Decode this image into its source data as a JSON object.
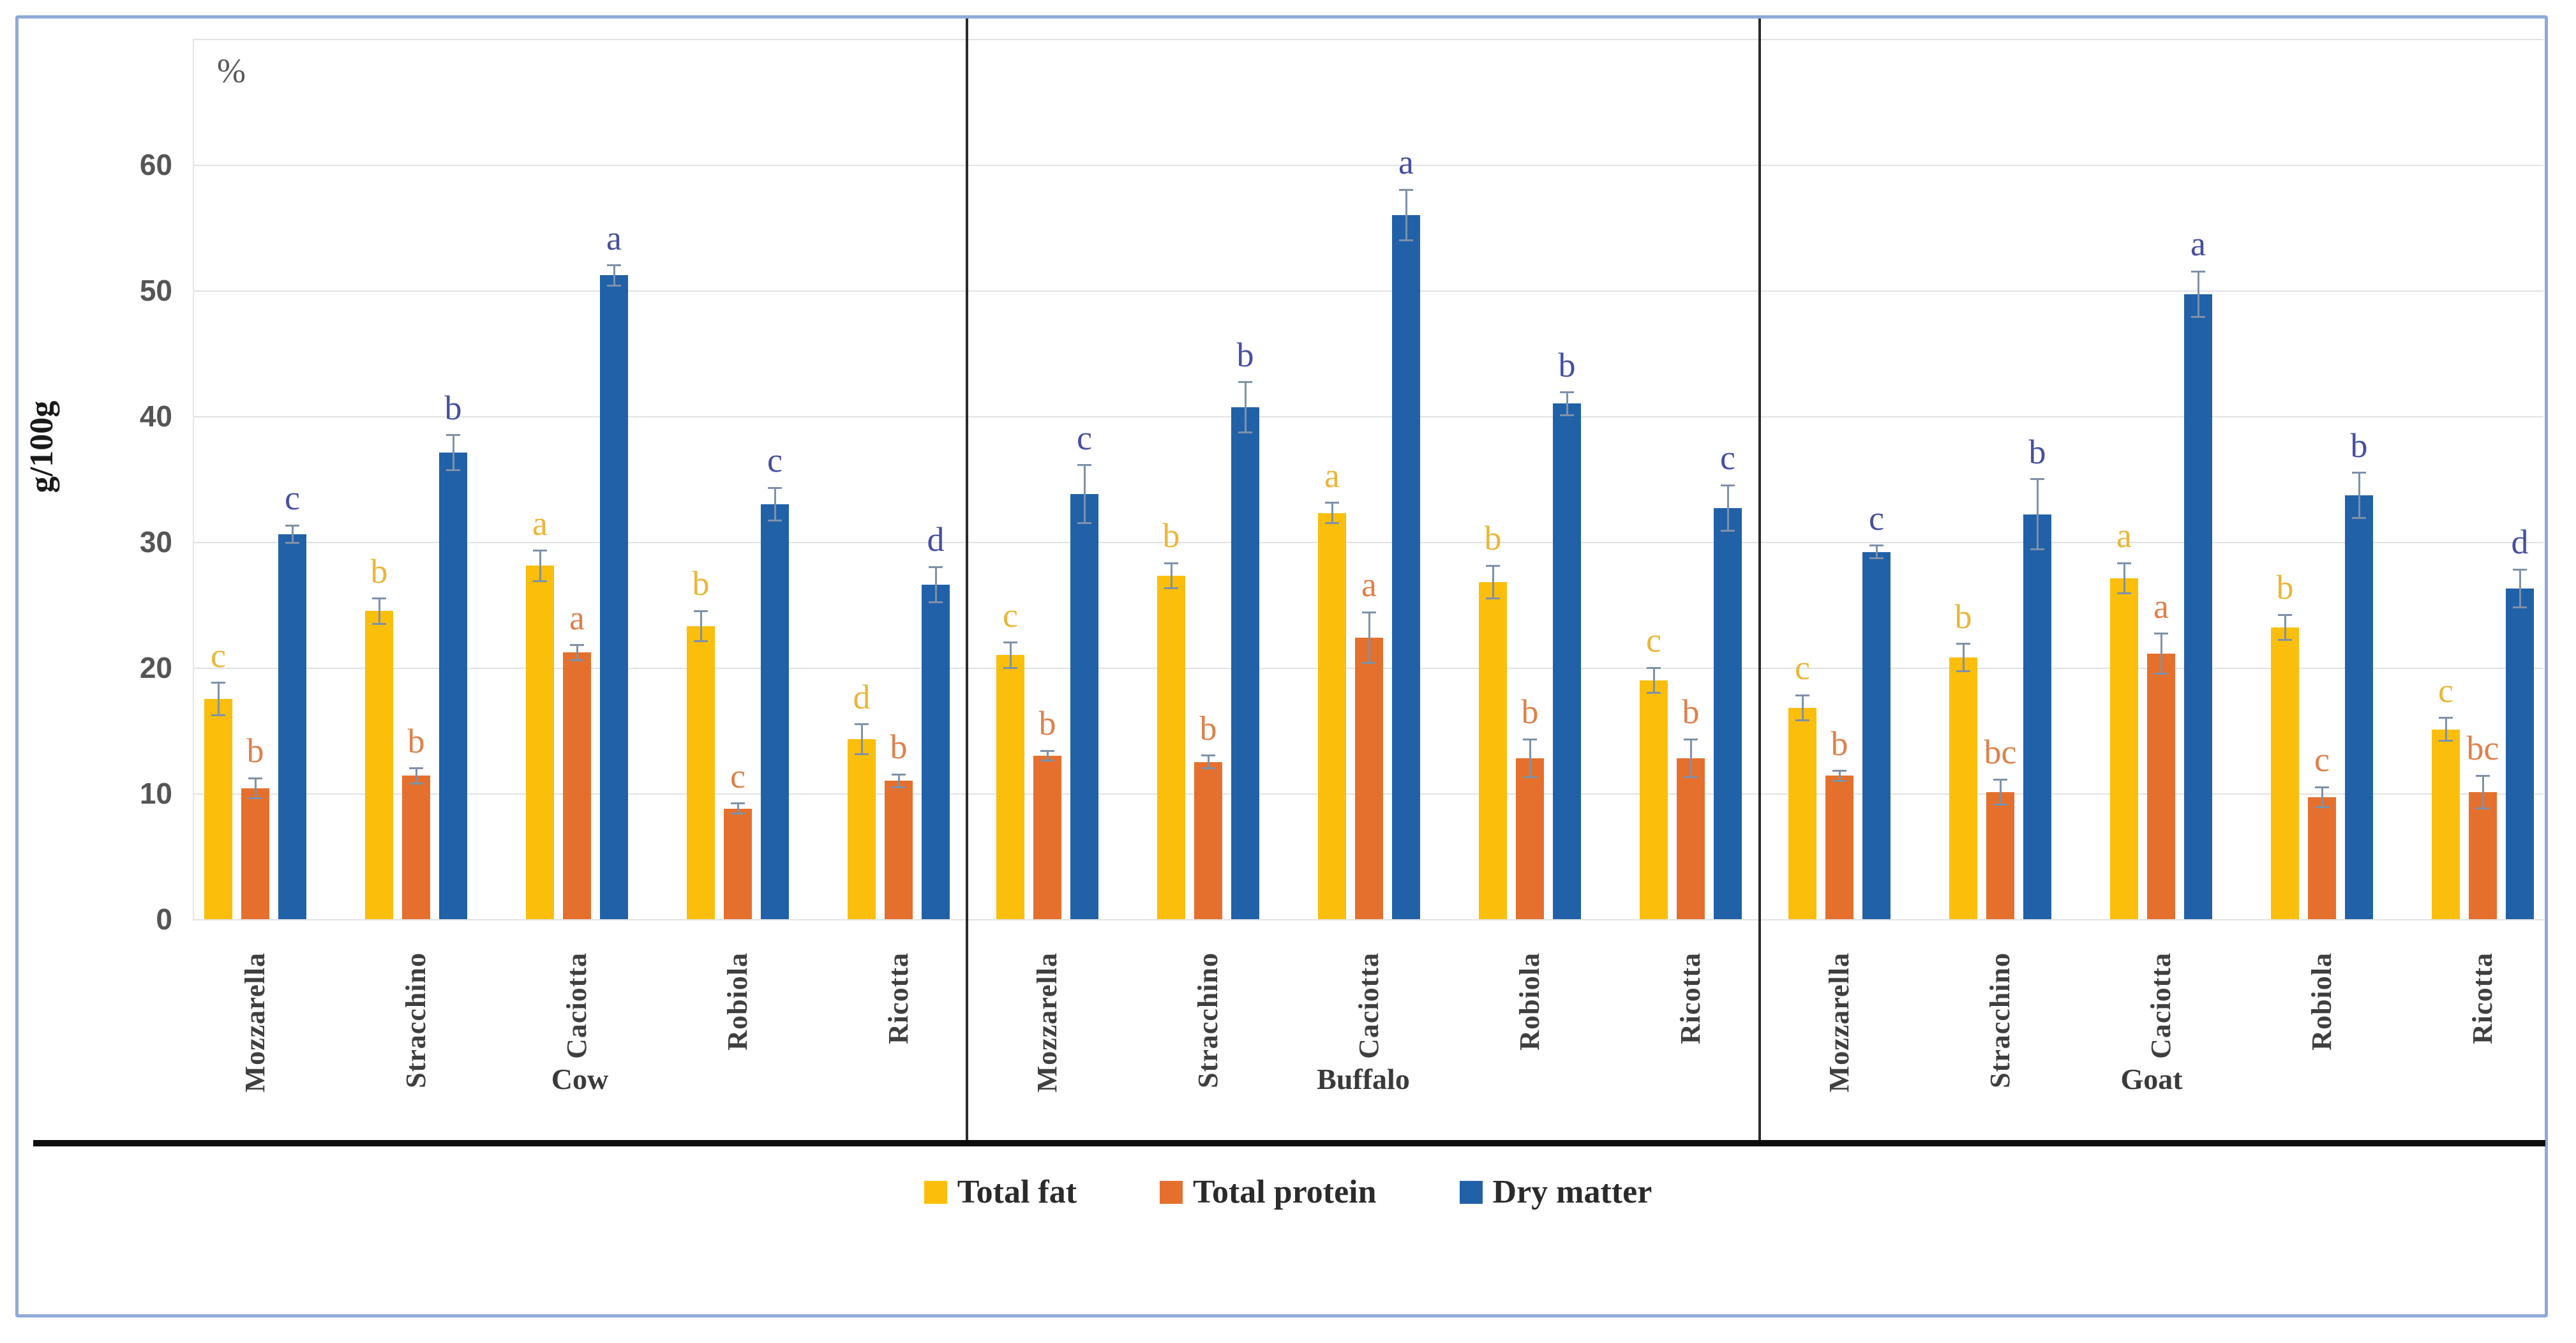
{
  "figure": {
    "unit_annotation": "%",
    "y_axis_label": "g/100g"
  },
  "chart_data": {
    "type": "bar",
    "title": "",
    "xlabel": "",
    "ylabel": "g/100g",
    "unit_annotation": "%",
    "ylim": [
      0,
      70
    ],
    "yticks": [
      0,
      10,
      20,
      30,
      40,
      50,
      60
    ],
    "grid": true,
    "legend_position": "bottom-center",
    "group_labels": [
      "Cow",
      "Buffalo",
      "Goat"
    ],
    "categories": [
      "Mozzarella",
      "Stracchino",
      "Caciotta",
      "Robiola",
      "Ricotta"
    ],
    "series": [
      {
        "name": "Total fat",
        "color": "#FBBE0B",
        "letter_color": "#EBB637",
        "groups": {
          "Cow": {
            "values": [
              17.5,
              24.5,
              28.1,
              23.3,
              14.3
            ],
            "errors": [
              1.3,
              1.0,
              1.2,
              1.2,
              1.2
            ],
            "letters": [
              "c",
              "b",
              "a",
              "b",
              "d"
            ]
          },
          "Buffalo": {
            "values": [
              21.0,
              27.3,
              32.3,
              26.8,
              19.0
            ],
            "errors": [
              1.0,
              1.0,
              0.8,
              1.3,
              1.0
            ],
            "letters": [
              "c",
              "b",
              "a",
              "b",
              "c"
            ]
          },
          "Goat": {
            "values": [
              16.8,
              20.8,
              27.1,
              23.2,
              15.1
            ],
            "errors": [
              1.0,
              1.1,
              1.2,
              1.0,
              0.9
            ],
            "letters": [
              "c",
              "b",
              "a",
              "b",
              "c"
            ]
          }
        }
      },
      {
        "name": "Total protein",
        "color": "#E5702D",
        "letter_color": "#DF8049",
        "groups": {
          "Cow": {
            "values": [
              10.4,
              11.4,
              21.2,
              8.8,
              11.0
            ],
            "errors": [
              0.8,
              0.6,
              0.6,
              0.4,
              0.5
            ],
            "letters": [
              "b",
              "b",
              "a",
              "c",
              "b"
            ]
          },
          "Buffalo": {
            "values": [
              13.0,
              12.5,
              22.4,
              12.8,
              12.8
            ],
            "errors": [
              0.4,
              0.5,
              2.0,
              1.5,
              1.5
            ],
            "letters": [
              "b",
              "b",
              "a",
              "b",
              "b"
            ]
          },
          "Goat": {
            "values": [
              11.4,
              10.1,
              21.1,
              9.7,
              10.1
            ],
            "errors": [
              0.4,
              1.0,
              1.6,
              0.8,
              1.3
            ],
            "letters": [
              "b",
              "bc",
              "a",
              "c",
              "bc"
            ]
          }
        }
      },
      {
        "name": "Dry matter",
        "color": "#2161A8",
        "letter_color": "#454FA1",
        "groups": {
          "Cow": {
            "values": [
              30.6,
              37.1,
              51.2,
              33.0,
              26.6
            ],
            "errors": [
              0.7,
              1.4,
              0.8,
              1.3,
              1.4
            ],
            "letters": [
              "c",
              "b",
              "a",
              "c",
              "d"
            ]
          },
          "Buffalo": {
            "values": [
              33.8,
              40.7,
              56.0,
              41.0,
              32.7
            ],
            "errors": [
              2.3,
              2.0,
              2.0,
              0.9,
              1.8
            ],
            "letters": [
              "c",
              "b",
              "a",
              "b",
              "c"
            ]
          },
          "Goat": {
            "values": [
              29.2,
              32.2,
              49.7,
              33.7,
              26.3
            ],
            "errors": [
              0.5,
              2.8,
              1.8,
              1.8,
              1.5
            ],
            "letters": [
              "c",
              "b",
              "a",
              "b",
              "d"
            ]
          }
        }
      }
    ]
  }
}
